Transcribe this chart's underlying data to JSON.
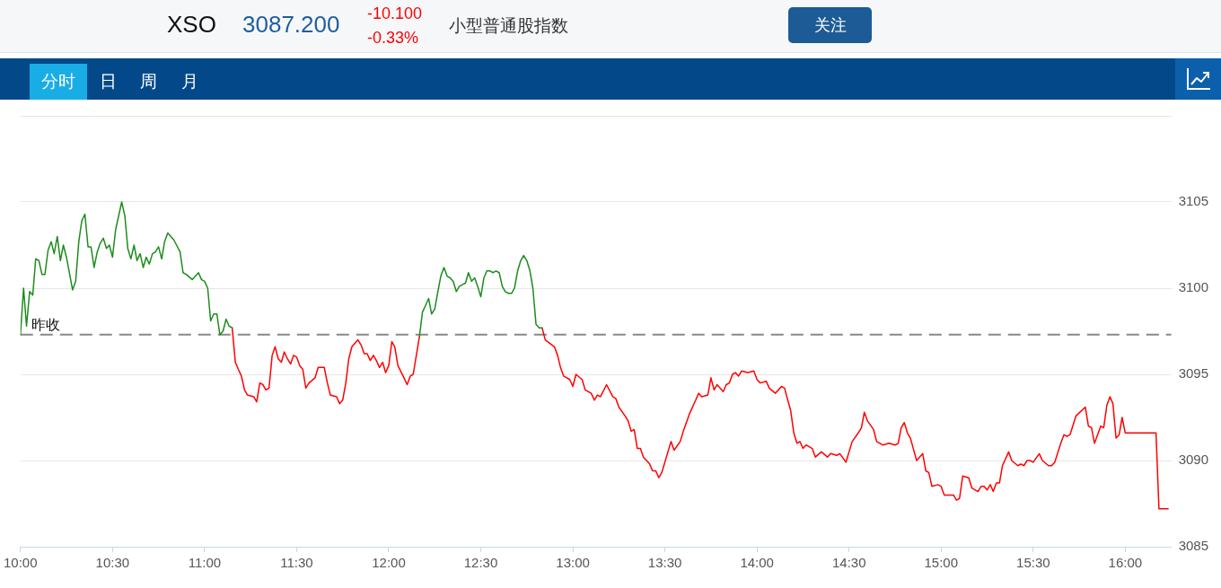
{
  "chart_data": {
    "type": "line",
    "title": "XSO",
    "subtitle": "小型普通股指数",
    "annotations": [
      "3087.200",
      "-10.100",
      "-0.33%",
      "关注",
      "分时",
      "日",
      "周",
      "月"
    ],
    "xlim": [
      10,
      16.25
    ],
    "xticks": [
      {
        "value": 10,
        "label": "10:00"
      },
      {
        "value": 10.5,
        "label": "10:30"
      },
      {
        "value": 11,
        "label": "11:00"
      },
      {
        "value": 11.5,
        "label": "11:30"
      },
      {
        "value": 12,
        "label": "12:00"
      },
      {
        "value": 12.5,
        "label": "12:30"
      },
      {
        "value": 13,
        "label": "13:00"
      },
      {
        "value": 13.5,
        "label": "13:30"
      },
      {
        "value": 14,
        "label": "14:00"
      },
      {
        "value": 14.5,
        "label": "14:30"
      },
      {
        "value": 15,
        "label": "15:00"
      },
      {
        "value": 15.5,
        "label": "15:30"
      },
      {
        "value": 16,
        "label": "16:00"
      }
    ],
    "ylim": [
      3085,
      3110
    ],
    "yticks": [
      3085,
      3090,
      3095,
      3100,
      3105,
      {
        "value": 3110,
        "label": null
      }
    ],
    "grid": "y",
    "ref_lines": [
      {
        "axis": "y",
        "value": 3097.3,
        "label": "昨收",
        "color": "#888888",
        "line_style": "dashed"
      }
    ],
    "series": [
      {
        "color": "#1c8c1c",
        "x": [
          10,
          10.017,
          10.033,
          10.05,
          10.067,
          10.083,
          10.1,
          10.117,
          10.133,
          10.15,
          10.167,
          10.183,
          10.2,
          10.217,
          10.233,
          10.25,
          10.283,
          10.3,
          10.317,
          10.333,
          10.35,
          10.367,
          10.383,
          10.4,
          10.417,
          10.433,
          10.45,
          10.467,
          10.483,
          10.5,
          10.517,
          10.55,
          10.567,
          10.583,
          10.6,
          10.617,
          10.633,
          10.65,
          10.667,
          10.683,
          10.7,
          10.717,
          10.733,
          10.75,
          10.767,
          10.783,
          10.8,
          10.833,
          10.867,
          10.883,
          10.9,
          10.933,
          10.967,
          10.983,
          11,
          11.017,
          11.033,
          11.05,
          11.067,
          11.083,
          11.1,
          11.117,
          11.133,
          11.15,
          11.6,
          12.167,
          12.183,
          12.2,
          12.217,
          12.233,
          12.25,
          12.267,
          12.283,
          12.3,
          12.317,
          12.333,
          12.35,
          12.367,
          12.383,
          12.4,
          12.417,
          12.433,
          12.45,
          12.467,
          12.483,
          12.5,
          12.517,
          12.533,
          12.55,
          12.567,
          12.583,
          12.6,
          12.617,
          12.633,
          12.65,
          12.667,
          12.683,
          12.7,
          12.717,
          12.733,
          12.75,
          12.767,
          12.783,
          12.8,
          12.817,
          12.833
        ],
        "values": [
          3097.3,
          3100.0,
          3097.8,
          3099.8,
          3099.6,
          3101.7,
          3101.6,
          3100.8,
          3100.8,
          3102.2,
          3102.7,
          3102.0,
          3103.0,
          3101.6,
          3102.5,
          3101.8,
          3099.9,
          3100.4,
          3102.7,
          3103.9,
          3104.3,
          3102.4,
          3102.4,
          3101.2,
          3102.1,
          3102.6,
          3102.9,
          3102.3,
          3102.5,
          3101.8,
          3103.4,
          3105.0,
          3104.2,
          3102.3,
          3101.7,
          3102.5,
          3101.6,
          3102.0,
          3101.2,
          3101.8,
          3101.4,
          3102.0,
          3102.1,
          3102.4,
          3101.7,
          3102.7,
          3103.2,
          3102.8,
          3102.1,
          3100.9,
          3100.8,
          3100.5,
          3100.9,
          3100.5,
          3100.4,
          3100.0,
          3098.1,
          3098.5,
          3098.5,
          3097.3,
          3097.5,
          3098.2,
          3097.8,
          3097.7,
          null,
          3097.2,
          3098.6,
          3099.0,
          3099.4,
          3098.5,
          3098.8,
          3099.8,
          3100.7,
          3101.2,
          3100.7,
          3100.6,
          3100.4,
          3099.8,
          3100.1,
          3100.2,
          3100.3,
          3100.9,
          3100.4,
          3100.6,
          3100.1,
          3099.5,
          3100.6,
          3101.0,
          3101.0,
          3100.9,
          3101.0,
          3100.9,
          3100.1,
          3099.8,
          3099.7,
          3099.7,
          3100.0,
          3101.0,
          3101.6,
          3101.9,
          3101.6,
          3101.0,
          3100.0,
          3097.9,
          3097.7,
          3097.7
        ]
      },
      {
        "color": "#ff0000",
        "x": [
          11.15,
          11.167,
          11.183,
          11.2,
          11.217,
          11.233,
          11.267,
          11.283,
          11.3,
          11.317,
          11.333,
          11.35,
          11.367,
          11.383,
          11.4,
          11.417,
          11.433,
          11.45,
          11.467,
          11.483,
          11.5,
          11.517,
          11.533,
          11.55,
          11.567,
          11.6,
          11.617,
          11.65,
          11.667,
          11.683,
          11.717,
          11.733,
          11.75,
          11.767,
          11.783,
          11.8,
          11.833,
          11.85,
          11.867,
          11.883,
          11.9,
          11.917,
          11.933,
          11.95,
          11.967,
          11.983,
          12,
          12.017,
          12.033,
          12.05,
          12.083,
          12.1,
          12.117,
          12.133,
          12.15,
          12.167,
          12.5,
          12.833,
          12.85,
          12.9,
          12.917,
          12.933,
          12.95,
          12.983,
          13,
          13.017,
          13.05,
          13.067,
          13.1,
          13.117,
          13.133,
          13.15,
          13.183,
          13.217,
          13.233,
          13.25,
          13.283,
          13.3,
          13.317,
          13.333,
          13.35,
          13.367,
          13.383,
          13.417,
          13.433,
          13.45,
          13.467,
          13.483,
          13.533,
          13.55,
          13.583,
          13.6,
          13.633,
          13.667,
          13.683,
          13.7,
          13.733,
          13.75,
          13.767,
          13.783,
          13.817,
          13.833,
          13.85,
          13.867,
          13.883,
          13.9,
          13.917,
          13.95,
          13.983,
          14,
          14.017,
          14.05,
          14.067,
          14.1,
          14.133,
          14.15,
          14.167,
          14.183,
          14.2,
          14.217,
          14.233,
          14.25,
          14.267,
          14.3,
          14.317,
          14.35,
          14.383,
          14.4,
          14.433,
          14.45,
          14.483,
          14.517,
          14.55,
          14.567,
          14.583,
          14.6,
          14.633,
          14.65,
          14.683,
          14.717,
          14.75,
          14.767,
          14.783,
          14.8,
          14.817,
          14.833,
          14.867,
          14.9,
          14.917,
          14.933,
          14.95,
          14.983,
          15,
          15.017,
          15.067,
          15.083,
          15.1,
          15.117,
          15.15,
          15.167,
          15.2,
          15.217,
          15.233,
          15.25,
          15.267,
          15.283,
          15.3,
          15.317,
          15.333,
          15.367,
          15.383,
          15.417,
          15.433,
          15.45,
          15.467,
          15.483,
          15.5,
          15.533,
          15.55,
          15.583,
          15.6,
          15.617,
          15.65,
          15.667,
          15.683,
          15.7,
          15.733,
          15.783,
          15.8,
          15.817,
          15.833,
          15.867,
          15.883,
          15.9,
          15.917,
          15.933,
          15.95,
          15.967,
          15.983,
          16,
          16.167,
          16.183,
          16.233
        ],
        "values": [
          3097.7,
          3095.7,
          3095.3,
          3094.9,
          3094.1,
          3093.8,
          3093.7,
          3093.4,
          3094.5,
          3094.4,
          3094.1,
          3094.2,
          3096.1,
          3096.6,
          3095.9,
          3095.7,
          3096.3,
          3095.9,
          3095.6,
          3096.1,
          3096.0,
          3095.5,
          3095.3,
          3094.2,
          3094.5,
          3094.8,
          3095.4,
          3095.4,
          3094.5,
          3093.8,
          3093.7,
          3093.3,
          3093.5,
          3094.5,
          3095.9,
          3096.6,
          3097.0,
          3096.7,
          3096.2,
          3096.2,
          3095.8,
          3096.1,
          3095.8,
          3095.4,
          3095.7,
          3095.1,
          3095.5,
          3096.9,
          3096.6,
          3095.5,
          3094.8,
          3094.4,
          3094.9,
          3095.0,
          3096.1,
          3097.2,
          null,
          3097.7,
          3097.0,
          3096.6,
          3096.1,
          3095.4,
          3094.9,
          3094.7,
          3094.3,
          3095.0,
          3094.7,
          3094.1,
          3093.9,
          3093.5,
          3093.8,
          3093.7,
          3094.4,
          3093.7,
          3093.6,
          3093.1,
          3092.6,
          3092.3,
          3091.7,
          3091.8,
          3090.7,
          3090.7,
          3090.2,
          3089.8,
          3089.4,
          3089.4,
          3089.0,
          3089.3,
          3091.1,
          3090.6,
          3091.1,
          3091.7,
          3092.7,
          3093.5,
          3093.9,
          3093.7,
          3093.8,
          3094.8,
          3094.1,
          3094.4,
          3094.0,
          3094.4,
          3094.5,
          3095.0,
          3095.1,
          3094.9,
          3095.2,
          3095.1,
          3095.2,
          3094.7,
          3094.5,
          3094.6,
          3094.2,
          3093.9,
          3094.3,
          3094.2,
          3093.5,
          3092.9,
          3091.6,
          3091.0,
          3091.1,
          3090.7,
          3090.9,
          3090.7,
          3090.2,
          3090.5,
          3090.2,
          3090.4,
          3090.3,
          3090.4,
          3089.9,
          3091.1,
          3091.6,
          3091.9,
          3092.8,
          3092.3,
          3091.8,
          3091.1,
          3090.9,
          3091.0,
          3090.9,
          3091.0,
          3091.9,
          3092.2,
          3091.6,
          3091.3,
          3090.0,
          3090.4,
          3089.4,
          3089.3,
          3088.5,
          3088.6,
          3088.5,
          3088.0,
          3088.0,
          3087.7,
          3087.8,
          3089.1,
          3089.0,
          3088.4,
          3088.2,
          3088.5,
          3088.5,
          3088.3,
          3088.6,
          3088.2,
          3088.7,
          3088.7,
          3089.7,
          3090.5,
          3090.0,
          3089.7,
          3089.8,
          3089.7,
          3090.0,
          3090.0,
          3089.9,
          3090.4,
          3090.0,
          3089.7,
          3089.7,
          3089.9,
          3091.0,
          3091.5,
          3091.4,
          3091.5,
          3092.6,
          3093.1,
          3092.0,
          3091.9,
          3091.0,
          3092.0,
          3091.9,
          3093.2,
          3093.7,
          3093.3,
          3091.3,
          3091.5,
          3092.5,
          3091.6,
          3091.6,
          3087.2,
          3087.2
        ]
      }
    ]
  }
}
